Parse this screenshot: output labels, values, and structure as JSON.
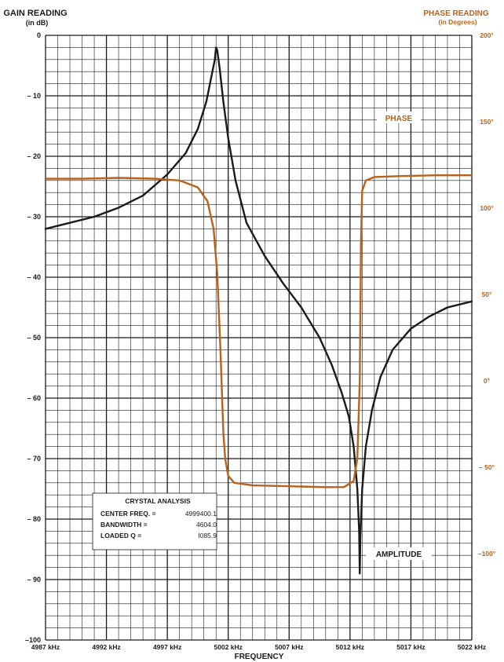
{
  "chart_data": {
    "type": "line",
    "ylabel_left": [
      "GAIN READING",
      "(in dB)"
    ],
    "ylabel_right": [
      "PHASE READING",
      "(in Degrees)"
    ],
    "xlabel": "FREQUENCY",
    "x_unit_label": "kHz",
    "xlim": [
      4987,
      5022
    ],
    "x_ticks": [
      4987,
      4992,
      4997,
      5002,
      5007,
      5012,
      5017,
      5022
    ],
    "x_tick_labels": [
      "4987 kHz",
      "4992 kHz",
      "4997 kHz",
      "5002 kHz",
      "5007 kHz",
      "5012 kHz",
      "5017 kHz",
      "5022 kHz"
    ],
    "ylim_left": [
      -100,
      0
    ],
    "y_ticks_left": [
      0,
      -10,
      -20,
      -30,
      -40,
      -50,
      -60,
      -70,
      -80,
      -90,
      -100
    ],
    "y_tick_labels_left": [
      "0",
      "– 10",
      "– 20",
      "– 30",
      "– 40",
      "– 50",
      "– 60",
      "– 70",
      "– 80",
      "– 90",
      "–100"
    ],
    "ylim_right": [
      -150,
      200
    ],
    "y_ticks_right": [
      200,
      150,
      100,
      50,
      0,
      -50,
      -100
    ],
    "y_tick_labels_right": [
      "200°",
      "150°",
      "100°",
      "50°",
      "0°",
      "– 50°",
      "–100°"
    ],
    "grid": true,
    "colors": {
      "amplitude": "#1a1a1a",
      "phase": "#b8621b",
      "grid": "#1a1a1a"
    },
    "series": [
      {
        "name": "AMPLITUDE",
        "axis": "left",
        "x": [
          4987,
          4989,
          4991,
          4993,
          4995,
          4997,
          4998.5,
          4999.5,
          5000.2,
          5000.6,
          5000.9,
          5001.0,
          5001.1,
          5001.3,
          5001.6,
          5002.0,
          5002.6,
          5003.5,
          5005,
          5006.5,
          5008,
          5009.5,
          5010.5,
          5011.3,
          5011.9,
          5012.3,
          5012.6,
          5012.75,
          5012.8,
          5012.85,
          5013.0,
          5013.3,
          5013.8,
          5014.5,
          5015.5,
          5017,
          5018.5,
          5020,
          5021,
          5022
        ],
        "y": [
          -32,
          -31,
          -30,
          -28.5,
          -26.5,
          -23,
          -19.5,
          -15.5,
          -11,
          -7,
          -4,
          -2,
          -2.5,
          -5.5,
          -11,
          -17,
          -24,
          -31,
          -36.5,
          -41,
          -45,
          -50,
          -54.5,
          -59,
          -63,
          -68,
          -75,
          -82,
          -89,
          -83,
          -75,
          -68,
          -62,
          -56.5,
          -52,
          -48.5,
          -46.5,
          -45,
          -44.5,
          -44
        ]
      },
      {
        "name": "PHASE",
        "axis": "right",
        "x": [
          4987,
          4990,
          4993,
          4996,
          4998,
          4999.5,
          5000.3,
          5000.8,
          5001.1,
          5001.35,
          5001.5,
          5001.6,
          5001.75,
          5002.0,
          5002.5,
          5004,
          5007,
          5010,
          5011.5,
          5012.3,
          5012.6,
          5012.8,
          5012.9,
          5013.0,
          5013.3,
          5014,
          5016,
          5019,
          5022
        ],
        "y": [
          117,
          117,
          117.5,
          117,
          116,
          112,
          104,
          88,
          62,
          20,
          -10,
          -30,
          -45,
          -55,
          -59,
          -60.5,
          -61,
          -61.5,
          -61.5,
          -58,
          -45,
          0,
          80,
          110,
          116,
          118,
          118.5,
          119,
          119
        ]
      }
    ],
    "annotations": {
      "phase_label": "PHASE",
      "amplitude_label": "AMPLITUDE"
    }
  },
  "info_box": {
    "title": "CRYSTAL ANALYSIS",
    "rows": [
      {
        "label": "CENTER FREQ. =",
        "value": "4999400.1"
      },
      {
        "label": "BANDWIDTH =",
        "value": "4604.0"
      },
      {
        "label": "LOADED Q =",
        "value": "I085.9"
      }
    ]
  }
}
